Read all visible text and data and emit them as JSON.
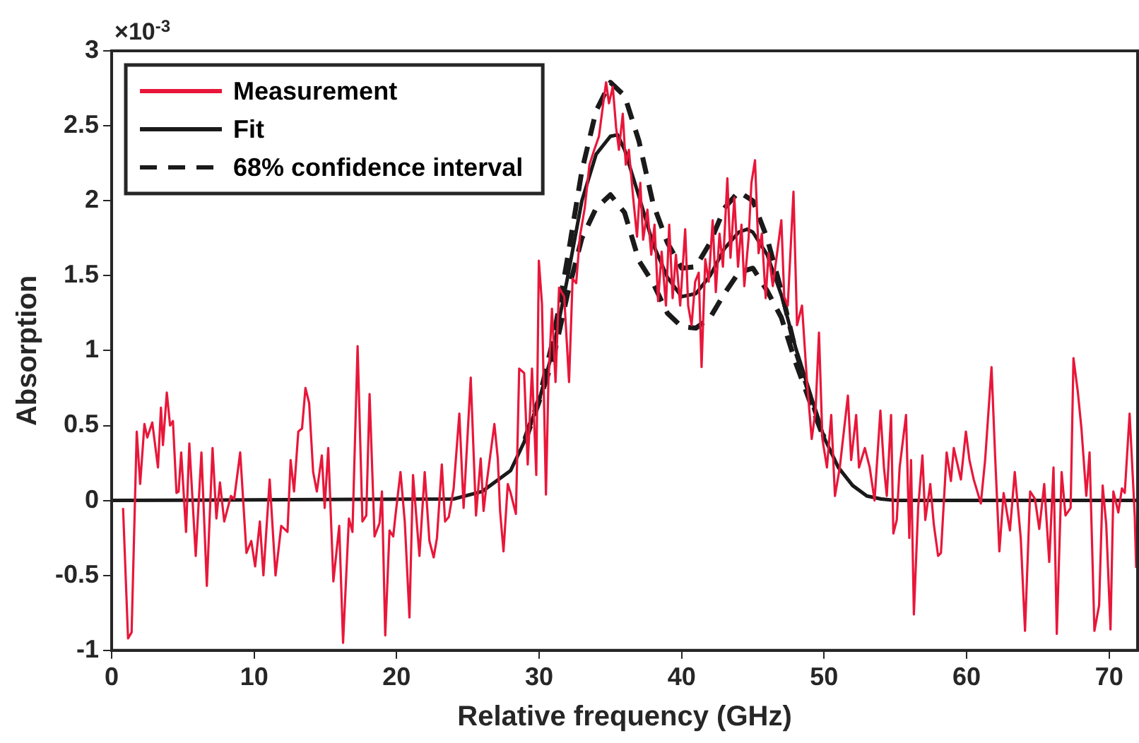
{
  "chart_data": {
    "type": "line",
    "xlabel": "Relative frequency (GHz)",
    "ylabel": "Absorption",
    "annotations": [
      "×10$^{-3}$"
    ],
    "xlim": [
      0,
      72
    ],
    "xticks": [
      0,
      10,
      20,
      30,
      40,
      50,
      60,
      70
    ],
    "ylim": [
      -1,
      3
    ],
    "yticks": [
      -1,
      -0.5,
      0,
      0.5,
      1,
      1.5,
      2,
      2.5,
      3
    ],
    "grid": false,
    "legend": "top left",
    "marker": "none",
    "series": [
      {
        "name": "Measurement",
        "color": "#e8173a",
        "line_style": "solid",
        "x": [
          0.8,
          1.15,
          1.4,
          1.76,
          2.0,
          2.3,
          2.5,
          2.85,
          3.25,
          3.46,
          3.6,
          3.87,
          4.1,
          4.3,
          4.55,
          4.7,
          4.88,
          5.22,
          5.45,
          5.9,
          6.3,
          6.68,
          7.08,
          7.35,
          7.6,
          7.9,
          8.37,
          8.6,
          9.02,
          9.46,
          9.8,
          10.07,
          10.4,
          10.65,
          11.09,
          11.5,
          11.9,
          12.34,
          12.56,
          12.8,
          13.1,
          13.36,
          13.6,
          13.86,
          14.14,
          14.4,
          14.75,
          14.95,
          15.2,
          15.56,
          15.97,
          16.24,
          16.65,
          16.9,
          17.26,
          17.6,
          17.87,
          18.1,
          18.45,
          18.8,
          18.97,
          19.2,
          19.5,
          19.76,
          19.93,
          20.27,
          20.57,
          20.9,
          21.15,
          21.6,
          21.97,
          22.3,
          22.6,
          22.83,
          23.17,
          23.4,
          23.66,
          24.0,
          24.4,
          24.7,
          25.2,
          25.57,
          25.9,
          26.1,
          26.35,
          26.86,
          27.1,
          27.26,
          27.5,
          27.8,
          28.0,
          28.37,
          28.6,
          28.95,
          29.2,
          29.5,
          29.8,
          29.98,
          30.2,
          30.48,
          30.65,
          30.9,
          31.15,
          31.4,
          31.76,
          32.1,
          32.35,
          32.6,
          32.86,
          33.2,
          33.53,
          33.87,
          34.2,
          34.5,
          34.7,
          34.9,
          35.17,
          35.4,
          35.6,
          35.87,
          36.08,
          36.3,
          36.6,
          36.87,
          37.1,
          37.3,
          37.6,
          37.87,
          38.1,
          38.35,
          38.6,
          38.9,
          39.13,
          39.37,
          39.6,
          39.9,
          40.25,
          40.46,
          40.7,
          40.95,
          41.2,
          41.4,
          41.66,
          41.9,
          42.18,
          42.4,
          42.66,
          42.9,
          43.21,
          43.43,
          43.7,
          43.96,
          44.2,
          44.4,
          44.7,
          44.9,
          45.15,
          45.4,
          45.63,
          45.9,
          46.1,
          46.4,
          46.7,
          47.0,
          47.2,
          47.45,
          47.85,
          48.1,
          48.45,
          48.8,
          49.13,
          49.4,
          49.64,
          49.88,
          50.2,
          50.5,
          50.76,
          51.1,
          51.67,
          51.9,
          52.25,
          52.45,
          52.86,
          53.2,
          53.54,
          53.95,
          54.2,
          54.4,
          54.7,
          54.86,
          55.1,
          55.3,
          55.75,
          55.98,
          56.1,
          56.3,
          56.6,
          56.9,
          57.1,
          57.45,
          57.7,
          58.0,
          58.2,
          58.6,
          58.9,
          59.1,
          59.6,
          59.95,
          60.2,
          60.5,
          61.0,
          61.3,
          61.75,
          62.0,
          62.3,
          62.6,
          63.04,
          63.38,
          63.8,
          64.1,
          64.46,
          64.8,
          65.1,
          65.45,
          65.8,
          66.1,
          66.33,
          66.67,
          66.94,
          67.3,
          67.5,
          67.8,
          68.06,
          68.4,
          68.63,
          68.97,
          69.3,
          69.55,
          69.8,
          70.1,
          70.3,
          70.65,
          70.9,
          71.1,
          71.44,
          71.8,
          71.9
        ],
        "values": [
          -0.05,
          -0.92,
          -0.88,
          0.46,
          0.11,
          0.51,
          0.42,
          0.52,
          0.22,
          0.62,
          0.37,
          0.72,
          0.5,
          0.53,
          0.05,
          0.06,
          0.32,
          -0.21,
          0.38,
          -0.37,
          0.32,
          -0.57,
          0.35,
          -0.12,
          0.12,
          -0.14,
          0.03,
          0.01,
          0.32,
          -0.35,
          -0.27,
          -0.44,
          -0.14,
          -0.5,
          0.14,
          -0.5,
          -0.17,
          -0.21,
          0.27,
          0.06,
          0.46,
          0.48,
          0.75,
          0.65,
          0.19,
          0.06,
          0.3,
          -0.05,
          0.35,
          -0.54,
          -0.17,
          -0.95,
          -0.12,
          -0.21,
          1.03,
          -0.14,
          -0.1,
          0.71,
          -0.24,
          -0.15,
          0.06,
          -0.9,
          -0.2,
          -0.24,
          -0.09,
          0.19,
          -0.14,
          -0.78,
          0.17,
          -0.37,
          0.19,
          -0.27,
          -0.38,
          -0.25,
          0.24,
          -0.14,
          -0.11,
          0.08,
          0.58,
          -0.05,
          0.82,
          -0.1,
          0.28,
          -0.07,
          0.14,
          0.51,
          0.28,
          -0.07,
          -0.34,
          0.11,
          0.05,
          -0.09,
          0.88,
          0.85,
          0.24,
          0.88,
          0.17,
          1.6,
          1.31,
          0.04,
          0.79,
          1.28,
          0.79,
          1.42,
          1.36,
          0.79,
          1.48,
          1.45,
          1.76,
          1.95,
          2.24,
          2.34,
          2.43,
          2.65,
          2.79,
          2.65,
          2.76,
          2.49,
          2.34,
          2.58,
          2.24,
          2.34,
          2.02,
          1.76,
          2.12,
          1.74,
          1.94,
          1.64,
          1.84,
          1.33,
          1.66,
          1.3,
          1.84,
          1.35,
          1.64,
          1.3,
          1.81,
          1.3,
          1.17,
          1.46,
          1.52,
          0.89,
          1.61,
          1.46,
          1.87,
          1.39,
          1.78,
          1.56,
          2.15,
          1.62,
          2.02,
          1.56,
          1.84,
          1.43,
          1.75,
          2.12,
          2.27,
          1.65,
          1.78,
          1.35,
          1.65,
          1.43,
          1.65,
          1.87,
          1.36,
          1.3,
          2.06,
          1.17,
          1.3,
          0.79,
          0.41,
          0.6,
          1.12,
          0.41,
          0.22,
          0.57,
          0.03,
          0.22,
          0.7,
          0.27,
          0.57,
          0.22,
          0.35,
          0.22,
          0.0,
          0.6,
          0.22,
          0.03,
          0.57,
          -0.22,
          -0.13,
          0.22,
          0.57,
          -0.25,
          0.27,
          -0.76,
          -0.05,
          0.3,
          -0.13,
          0.11,
          -0.16,
          -0.37,
          -0.35,
          0.32,
          0.13,
          0.35,
          0.14,
          0.46,
          0.27,
          0.14,
          -0.02,
          0.27,
          0.89,
          0.3,
          -0.34,
          0.05,
          -0.2,
          0.19,
          -0.25,
          -0.87,
          0.06,
          0.01,
          -0.19,
          0.11,
          -0.41,
          0.22,
          -0.89,
          0.19,
          -0.1,
          -0.05,
          0.95,
          0.73,
          0.48,
          0.03,
          0.32,
          -0.87,
          -0.7,
          0.1,
          -0.16,
          -0.86,
          0.06,
          -0.08,
          0.08,
          0.05,
          0.58,
          -0.1,
          -0.45
        ]
      },
      {
        "name": "Fit",
        "color": "#1a1a1a",
        "line_style": "solid",
        "x": [
          0,
          24,
          26,
          28,
          29,
          30,
          31,
          32,
          33,
          34,
          35,
          35.5,
          36,
          37,
          38,
          39,
          40,
          41,
          42,
          43,
          44,
          44.6,
          45,
          46,
          47,
          48,
          49,
          50,
          51,
          52,
          53,
          54,
          55,
          72
        ],
        "values": [
          0,
          0.01,
          0.06,
          0.2,
          0.4,
          0.67,
          1.01,
          1.49,
          2.0,
          2.31,
          2.43,
          2.44,
          2.34,
          2.03,
          1.71,
          1.49,
          1.36,
          1.38,
          1.5,
          1.68,
          1.79,
          1.81,
          1.79,
          1.64,
          1.37,
          1.02,
          0.72,
          0.42,
          0.22,
          0.1,
          0.03,
          0.01,
          0,
          0
        ]
      },
      {
        "name": "68% confidence interval",
        "color": "#1a1a1a",
        "line_style": "dashed",
        "x": [
          29,
          30,
          31,
          32,
          33,
          34,
          35,
          36,
          37,
          38,
          39,
          40,
          41,
          42,
          43,
          44,
          45,
          46,
          47,
          48,
          49,
          50
        ],
        "values": [
          0.41,
          0.68,
          1.08,
          1.62,
          2.2,
          2.6,
          2.79,
          2.7,
          2.4,
          1.98,
          1.72,
          1.55,
          1.56,
          1.72,
          1.95,
          2.06,
          2.0,
          1.75,
          1.4,
          1.0,
          0.7,
          0.42
        ]
      },
      {
        "color": "#1a1a1a",
        "line_style": "dashed",
        "x": [
          29,
          30,
          31,
          32,
          33,
          34,
          35,
          36,
          37,
          38,
          39,
          40,
          41,
          42,
          43,
          44,
          45,
          46,
          47,
          48,
          49,
          50
        ],
        "values": [
          0.39,
          0.66,
          0.95,
          1.38,
          1.75,
          1.95,
          2.04,
          1.92,
          1.6,
          1.45,
          1.25,
          1.16,
          1.15,
          1.22,
          1.38,
          1.52,
          1.55,
          1.4,
          1.22,
          0.92,
          0.66,
          0.41
        ]
      }
    ]
  }
}
